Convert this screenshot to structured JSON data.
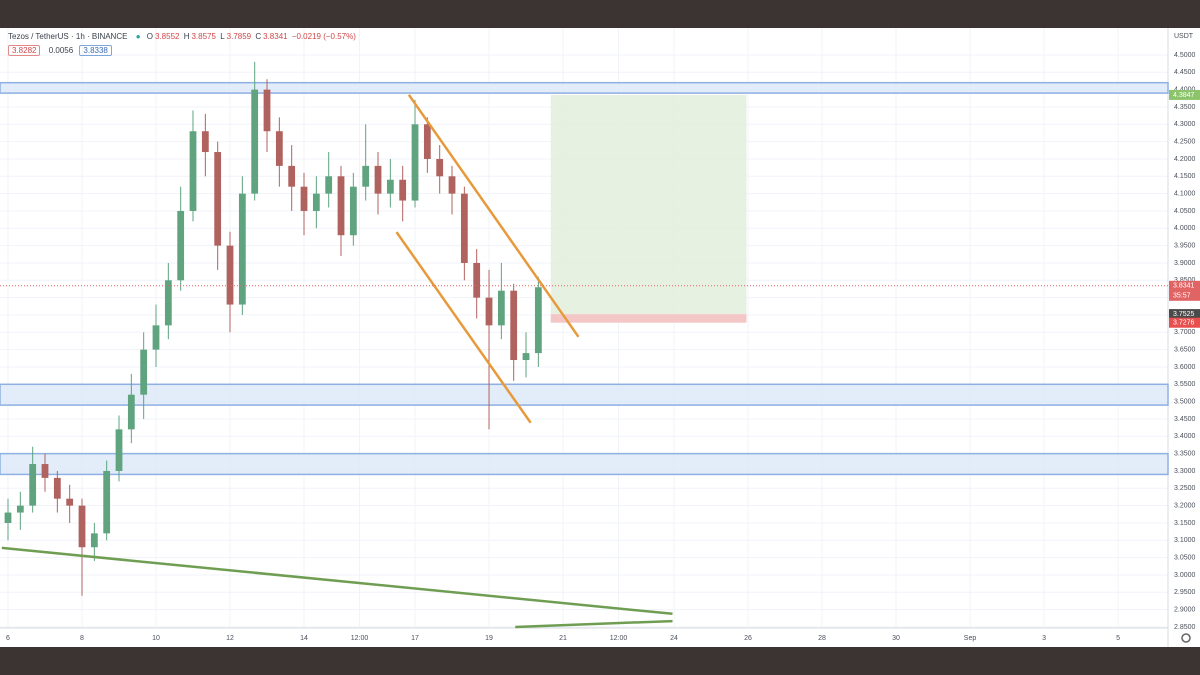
{
  "chart_data": {
    "type": "candlestick",
    "symbol": "Tezos / TetherUS · 1h · BINANCE",
    "ohlc_legend": [
      {
        "key": "O",
        "value": 3.8552
      },
      {
        "key": "H",
        "value": 3.8575
      },
      {
        "key": "L",
        "value": 3.7859
      },
      {
        "key": "C",
        "value": 3.8341
      }
    ],
    "change": "−0.0219 (−0.57%)",
    "indicator_values": [
      3.8282,
      0.0056,
      3.8338
    ],
    "currency": "USDT",
    "up_color": "#5fa37f",
    "down_color": "#b0625f",
    "grid": true,
    "x": [
      0,
      8,
      16,
      24,
      32,
      40,
      48,
      56,
      64,
      72,
      80,
      88,
      96,
      104,
      112,
      120,
      128,
      136,
      144,
      152,
      160,
      168,
      176,
      184,
      192,
      200,
      208,
      216,
      224,
      232,
      240,
      248,
      256,
      264,
      272,
      280,
      288,
      296,
      304,
      312,
      320,
      328,
      336,
      344
    ],
    "open": [
      3.15,
      3.18,
      3.2,
      3.32,
      3.28,
      3.22,
      3.2,
      3.08,
      3.12,
      3.3,
      3.42,
      3.52,
      3.65,
      3.72,
      3.85,
      4.05,
      4.28,
      4.22,
      3.95,
      3.78,
      4.1,
      4.4,
      4.28,
      4.18,
      4.12,
      4.05,
      4.1,
      4.15,
      3.98,
      4.12,
      4.18,
      4.1,
      4.14,
      4.08,
      4.3,
      4.2,
      4.15,
      4.1,
      3.9,
      3.8,
      3.72,
      3.82,
      3.62,
      3.64
    ],
    "high": [
      3.22,
      3.24,
      3.37,
      3.35,
      3.3,
      3.26,
      3.22,
      3.15,
      3.33,
      3.46,
      3.58,
      3.7,
      3.78,
      3.9,
      4.12,
      4.34,
      4.33,
      4.25,
      3.99,
      4.15,
      4.48,
      4.43,
      4.32,
      4.24,
      4.16,
      4.15,
      4.22,
      4.18,
      4.16,
      4.3,
      4.22,
      4.2,
      4.18,
      4.37,
      4.32,
      4.24,
      4.18,
      4.12,
      3.94,
      3.88,
      3.9,
      3.84,
      3.7,
      3.86
    ],
    "low": [
      3.1,
      3.13,
      3.18,
      3.24,
      3.18,
      3.15,
      2.94,
      3.04,
      3.1,
      3.27,
      3.38,
      3.45,
      3.6,
      3.68,
      3.82,
      4.02,
      4.15,
      3.88,
      3.7,
      3.75,
      4.08,
      4.22,
      4.12,
      4.05,
      3.98,
      4.0,
      4.06,
      3.92,
      3.95,
      4.08,
      4.04,
      4.06,
      4.02,
      4.06,
      4.16,
      4.1,
      4.04,
      3.85,
      3.74,
      3.42,
      3.68,
      3.56,
      3.57,
      3.6
    ],
    "close": [
      3.18,
      3.2,
      3.32,
      3.28,
      3.22,
      3.2,
      3.08,
      3.12,
      3.3,
      3.42,
      3.52,
      3.65,
      3.72,
      3.85,
      4.05,
      4.28,
      4.22,
      3.95,
      3.78,
      4.1,
      4.4,
      4.28,
      4.18,
      4.12,
      4.05,
      4.1,
      4.15,
      3.98,
      4.12,
      4.18,
      4.1,
      4.14,
      4.08,
      4.3,
      4.2,
      4.15,
      4.1,
      3.9,
      3.8,
      3.72,
      3.82,
      3.62,
      3.64,
      3.83
    ],
    "xlim": [
      -5.19,
      752.4
    ],
    "xticks": [
      {
        "value": 0,
        "label": "6"
      },
      {
        "value": 48,
        "label": "8"
      },
      {
        "value": 96,
        "label": "10"
      },
      {
        "value": 144,
        "label": "12"
      },
      {
        "value": 192,
        "label": "14"
      },
      {
        "value": 228,
        "label": "12:00"
      },
      {
        "value": 264,
        "label": "17"
      },
      {
        "value": 312,
        "label": "19"
      },
      {
        "value": 360,
        "label": "21"
      },
      {
        "value": 396,
        "label": "12:00"
      },
      {
        "value": 432,
        "label": "24"
      },
      {
        "value": 480,
        "label": "26"
      },
      {
        "value": 528,
        "label": "28"
      },
      {
        "value": 576,
        "label": "30"
      },
      {
        "value": 624,
        "label": "Sep"
      },
      {
        "value": 672,
        "label": "3"
      },
      {
        "value": 720,
        "label": "5"
      }
    ],
    "ylim": [
      2.847,
      4.572
    ],
    "yticks": [
      {
        "value": 2.85,
        "label": "2.8500"
      },
      {
        "value": 2.9,
        "label": "2.9000"
      },
      {
        "value": 2.95,
        "label": "2.9500"
      },
      {
        "value": 3.0,
        "label": "3.0000"
      },
      {
        "value": 3.05,
        "label": "3.0500"
      },
      {
        "value": 3.1,
        "label": "3.1000"
      },
      {
        "value": 3.15,
        "label": "3.1500"
      },
      {
        "value": 3.2,
        "label": "3.2000"
      },
      {
        "value": 3.25,
        "label": "3.2500"
      },
      {
        "value": 3.3,
        "label": "3.3000"
      },
      {
        "value": 3.35,
        "label": "3.3500"
      },
      {
        "value": 3.4,
        "label": "3.4000"
      },
      {
        "value": 3.45,
        "label": "3.4500"
      },
      {
        "value": 3.5,
        "label": "3.5000"
      },
      {
        "value": 3.55,
        "label": "3.5500"
      },
      {
        "value": 3.6,
        "label": "3.6000"
      },
      {
        "value": 3.65,
        "label": "3.6500"
      },
      {
        "value": 3.7,
        "label": "3.7000"
      },
      {
        "value": 3.75,
        "label": "3.7500"
      },
      {
        "value": 3.8,
        "label": "3.8000"
      },
      {
        "value": 3.85,
        "label": "3.8500"
      },
      {
        "value": 3.9,
        "label": "3.9000"
      },
      {
        "value": 3.95,
        "label": "3.9500"
      },
      {
        "value": 4.0,
        "label": "4.0000"
      },
      {
        "value": 4.05,
        "label": "4.0500"
      },
      {
        "value": 4.1,
        "label": "4.1000"
      },
      {
        "value": 4.15,
        "label": "4.1500"
      },
      {
        "value": 4.2,
        "label": "4.2000"
      },
      {
        "value": 4.25,
        "label": "4.2500"
      },
      {
        "value": 4.3,
        "label": "4.3000"
      },
      {
        "value": 4.35,
        "label": "4.3500"
      },
      {
        "value": 4.4,
        "label": "4.4000"
      },
      {
        "value": 4.45,
        "label": "4.4500"
      },
      {
        "value": 4.5,
        "label": "4.5000"
      }
    ],
    "zones": {
      "color": "#dce7f8",
      "border": "#8eb0e2",
      "ranges": [
        [
          4.39,
          4.42
        ],
        [
          3.49,
          3.55
        ],
        [
          3.29,
          3.35
        ]
      ]
    },
    "trend_lines": [
      {
        "color": "#e69a3c",
        "points": [
          [
            260,
            4.385
          ],
          [
            370,
            3.687
          ]
        ]
      },
      {
        "color": "#e69a3c",
        "points": [
          [
            252,
            3.989
          ],
          [
            339,
            3.439
          ]
        ]
      },
      {
        "color": "#6f9e52",
        "points": [
          [
            -4,
            3.078
          ],
          [
            431,
            2.888
          ]
        ]
      },
      {
        "color": "#6f9e52",
        "points": [
          [
            329,
            2.85
          ],
          [
            431,
            2.867
          ]
        ]
      }
    ],
    "long_position": {
      "x": [
        352,
        479
      ],
      "entry": 3.7525,
      "target": 4.3847,
      "stop": 3.7276
    },
    "price_tags": [
      {
        "value": 4.3847,
        "color": "#8cc46c"
      },
      {
        "value": 3.8341,
        "color": "#e06464",
        "countdown": "35:57",
        "last_price_line": true
      },
      {
        "value": 3.7525,
        "color": "#4a4a4a"
      },
      {
        "value": 3.7276,
        "color": "#e84f4f"
      }
    ]
  }
}
